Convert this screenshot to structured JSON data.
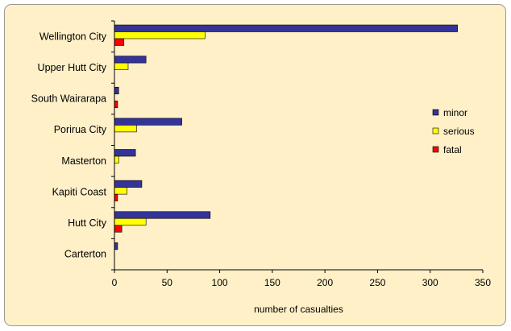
{
  "chart_data": {
    "type": "bar",
    "orientation": "horizontal",
    "categories": [
      "Wellington City",
      "Upper Hutt City",
      "South Wairarapa",
      "Porirua City",
      "Masterton",
      "Kapiti Coast",
      "Hutt City",
      "Carterton"
    ],
    "series": [
      {
        "name": "minor",
        "color": "#333399",
        "values": [
          326,
          30,
          4,
          64,
          20,
          26,
          91,
          3
        ]
      },
      {
        "name": "serious",
        "color": "#FFFF00",
        "values": [
          86,
          13,
          0,
          21,
          4,
          12,
          30,
          0
        ]
      },
      {
        "name": "fatal",
        "color": "#FF0000",
        "values": [
          9,
          0,
          3,
          0,
          0,
          3,
          7,
          0
        ]
      }
    ],
    "xlabel": "number of casualties",
    "xlim": [
      0,
      350
    ],
    "xticks": [
      0,
      50,
      100,
      150,
      200,
      250,
      300,
      350
    ],
    "legend_position": "right",
    "grid": false,
    "background": "#FFF0C8"
  }
}
